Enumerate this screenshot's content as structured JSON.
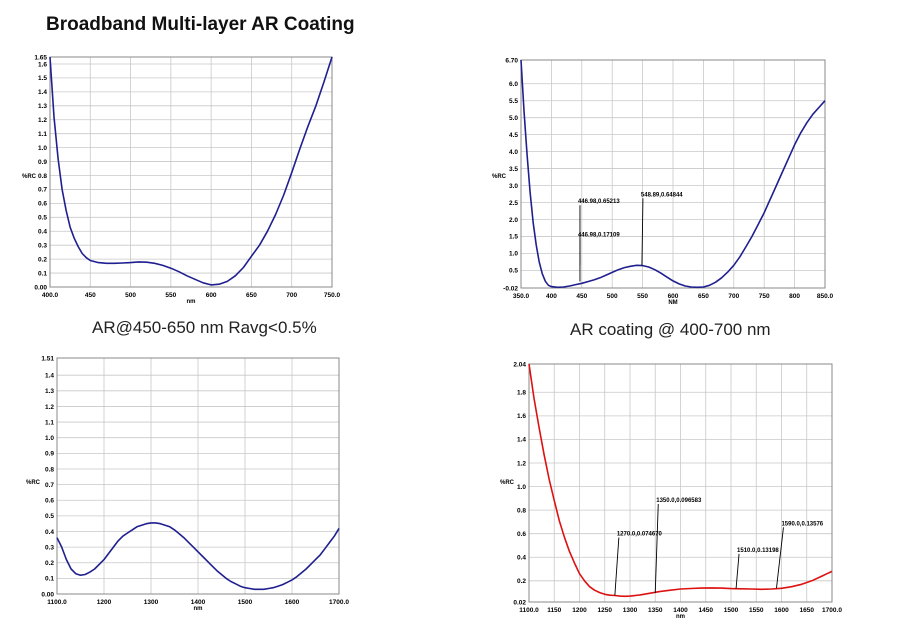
{
  "title": "Broadband Multi-layer AR Coating",
  "captions": [
    "AR@450-650 nm Ravg<0.5%",
    "AR coating @ 400-700 nm"
  ],
  "chart_data": [
    {
      "type": "line",
      "xlabel": "nm",
      "ylabel": "%RC",
      "xlim": [
        400.0,
        750.0
      ],
      "ylim": [
        0.0,
        1.65
      ],
      "xticks": [
        "400.0",
        "450",
        "500",
        "550",
        "600",
        "650",
        "700",
        "750.0"
      ],
      "yticks": [
        "0.00",
        "0.1",
        "0.2",
        "0.3",
        "0.4",
        "0.5",
        "0.6",
        "0.7",
        "0.8",
        "0.9",
        "1.0",
        "1.1",
        "1.2",
        "1.3",
        "1.4",
        "1.5",
        "1.6",
        "1.65"
      ],
      "grid": true,
      "series": [
        {
          "color": "#1f1f8f",
          "x": [
            400,
            405,
            410,
            415,
            420,
            425,
            430,
            435,
            440,
            445,
            450,
            460,
            470,
            480,
            490,
            500,
            510,
            520,
            530,
            540,
            550,
            560,
            570,
            580,
            590,
            600,
            610,
            620,
            630,
            640,
            650,
            660,
            670,
            680,
            690,
            700,
            710,
            720,
            730,
            740,
            750
          ],
          "y": [
            1.65,
            1.22,
            0.92,
            0.7,
            0.55,
            0.43,
            0.35,
            0.29,
            0.24,
            0.21,
            0.19,
            0.175,
            0.17,
            0.17,
            0.172,
            0.175,
            0.18,
            0.178,
            0.17,
            0.155,
            0.135,
            0.11,
            0.08,
            0.055,
            0.03,
            0.015,
            0.02,
            0.04,
            0.08,
            0.14,
            0.22,
            0.3,
            0.4,
            0.52,
            0.66,
            0.82,
            0.99,
            1.15,
            1.3,
            1.47,
            1.65
          ]
        }
      ]
    },
    {
      "type": "line",
      "xlabel": "NM",
      "ylabel": "%RC",
      "xlim": [
        350.0,
        850.0
      ],
      "ylim": [
        -0.02,
        6.7
      ],
      "xticks": [
        "350.0",
        "400",
        "450",
        "500",
        "550",
        "600",
        "650",
        "700",
        "750",
        "800",
        "850.0"
      ],
      "yticks": [
        "-0.02",
        "0.5",
        "1.0",
        "1.5",
        "2.0",
        "2.5",
        "3.0",
        "3.5",
        "4.0",
        "4.5",
        "5.0",
        "5.5",
        "6.0",
        "6.70"
      ],
      "grid": true,
      "annotations": [
        {
          "label": "446.98,0.65213",
          "x": 446.98,
          "y": 0.65213
        },
        {
          "label": "446.98,0.17109",
          "x": 446.98,
          "y": 0.17109
        },
        {
          "label": "548.89,0.64844",
          "x": 548.89,
          "y": 0.64844
        }
      ],
      "series": [
        {
          "color": "#1f1f8f",
          "x": [
            350,
            355,
            360,
            365,
            370,
            375,
            380,
            385,
            390,
            395,
            400,
            410,
            420,
            430,
            440,
            450,
            460,
            470,
            480,
            490,
            500,
            510,
            520,
            530,
            540,
            550,
            560,
            570,
            580,
            590,
            600,
            610,
            620,
            630,
            640,
            650,
            660,
            670,
            680,
            690,
            700,
            710,
            720,
            730,
            740,
            750,
            760,
            770,
            780,
            790,
            800,
            810,
            820,
            830,
            840,
            850
          ],
          "y": [
            6.7,
            5.2,
            3.9,
            2.8,
            1.9,
            1.25,
            0.75,
            0.4,
            0.18,
            0.06,
            0.02,
            0.0,
            0.01,
            0.04,
            0.08,
            0.12,
            0.17,
            0.22,
            0.28,
            0.36,
            0.44,
            0.52,
            0.58,
            0.62,
            0.65,
            0.64,
            0.6,
            0.52,
            0.42,
            0.3,
            0.19,
            0.1,
            0.04,
            0.01,
            0.0,
            0.01,
            0.06,
            0.15,
            0.28,
            0.45,
            0.65,
            0.9,
            1.2,
            1.5,
            1.85,
            2.2,
            2.6,
            3.0,
            3.4,
            3.8,
            4.2,
            4.55,
            4.85,
            5.1,
            5.3,
            5.5
          ]
        }
      ]
    },
    {
      "type": "line",
      "xlabel": "nm",
      "ylabel": "%RC",
      "xlim": [
        1100.0,
        1700.0
      ],
      "ylim": [
        0.0,
        1.51
      ],
      "xticks": [
        "1100.0",
        "1200",
        "1300",
        "1400",
        "1500",
        "1600",
        "1700.0"
      ],
      "yticks": [
        "0.00",
        "0.1",
        "0.2",
        "0.3",
        "0.4",
        "0.5",
        "0.6",
        "0.7",
        "0.8",
        "0.9",
        "1.0",
        "1.1",
        "1.2",
        "1.3",
        "1.4",
        "1.51"
      ],
      "grid": true,
      "series": [
        {
          "color": "#1f1f8f",
          "x": [
            1100,
            1110,
            1120,
            1130,
            1140,
            1150,
            1160,
            1170,
            1180,
            1190,
            1200,
            1210,
            1220,
            1230,
            1240,
            1250,
            1260,
            1270,
            1280,
            1290,
            1300,
            1310,
            1320,
            1330,
            1340,
            1350,
            1360,
            1370,
            1380,
            1390,
            1400,
            1410,
            1420,
            1430,
            1440,
            1450,
            1460,
            1470,
            1480,
            1490,
            1500,
            1510,
            1520,
            1530,
            1540,
            1550,
            1560,
            1570,
            1580,
            1590,
            1600,
            1610,
            1620,
            1630,
            1640,
            1650,
            1660,
            1670,
            1680,
            1690,
            1700
          ],
          "y": [
            0.36,
            0.3,
            0.22,
            0.16,
            0.13,
            0.12,
            0.125,
            0.14,
            0.16,
            0.19,
            0.22,
            0.26,
            0.3,
            0.34,
            0.37,
            0.39,
            0.41,
            0.43,
            0.44,
            0.45,
            0.455,
            0.455,
            0.45,
            0.44,
            0.43,
            0.41,
            0.385,
            0.36,
            0.33,
            0.3,
            0.27,
            0.24,
            0.21,
            0.18,
            0.15,
            0.125,
            0.1,
            0.08,
            0.065,
            0.05,
            0.04,
            0.035,
            0.03,
            0.03,
            0.03,
            0.035,
            0.04,
            0.05,
            0.06,
            0.075,
            0.09,
            0.11,
            0.135,
            0.16,
            0.19,
            0.22,
            0.25,
            0.29,
            0.33,
            0.37,
            0.42
          ]
        }
      ]
    },
    {
      "type": "line",
      "xlabel": "nm",
      "ylabel": "%RC",
      "xlim": [
        1100.0,
        1700.0
      ],
      "ylim": [
        0.02,
        2.04
      ],
      "xticks": [
        "1100.0",
        "1150",
        "1200",
        "1250",
        "1300",
        "1350",
        "1400",
        "1450",
        "1500",
        "1550",
        "1600",
        "1650",
        "1700.0"
      ],
      "yticks": [
        "0.02",
        "0.2",
        "0.4",
        "0.6",
        "0.8",
        "1.0",
        "1.2",
        "1.4",
        "1.6",
        "1.8",
        "2.04"
      ],
      "grid": true,
      "annotations": [
        {
          "label": "1270.0,0.074670",
          "x": 1270.0,
          "y": 0.07467
        },
        {
          "label": "1350.0,0.096583",
          "x": 1350.0,
          "y": 0.096583
        },
        {
          "label": "1510.0,0.13198",
          "x": 1510.0,
          "y": 0.13198
        },
        {
          "label": "1590.0,0.13576",
          "x": 1590.0,
          "y": 0.13576
        }
      ],
      "series": [
        {
          "color": "#dd1111",
          "x": [
            1100,
            1110,
            1120,
            1130,
            1140,
            1150,
            1160,
            1170,
            1180,
            1190,
            1200,
            1210,
            1220,
            1230,
            1240,
            1250,
            1260,
            1270,
            1280,
            1290,
            1300,
            1320,
            1340,
            1360,
            1380,
            1400,
            1420,
            1440,
            1460,
            1480,
            1500,
            1520,
            1540,
            1560,
            1580,
            1600,
            1620,
            1640,
            1660,
            1680,
            1690,
            1700
          ],
          "y": [
            2.04,
            1.75,
            1.5,
            1.27,
            1.06,
            0.88,
            0.71,
            0.57,
            0.45,
            0.35,
            0.26,
            0.2,
            0.15,
            0.12,
            0.1,
            0.085,
            0.078,
            0.075,
            0.07,
            0.068,
            0.07,
            0.08,
            0.095,
            0.11,
            0.12,
            0.13,
            0.135,
            0.138,
            0.14,
            0.138,
            0.134,
            0.132,
            0.13,
            0.128,
            0.13,
            0.136,
            0.15,
            0.17,
            0.2,
            0.24,
            0.26,
            0.28
          ]
        }
      ]
    }
  ]
}
